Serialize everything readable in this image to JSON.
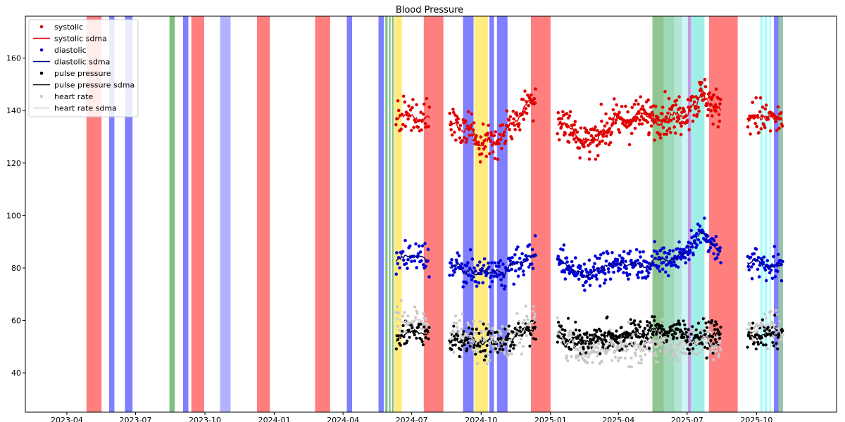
{
  "chart_data": {
    "type": "scatter",
    "title": "Blood Pressure",
    "xlabel": "",
    "ylabel": "",
    "x_range": [
      "2023-02-05",
      "2026-01-15"
    ],
    "ylim": [
      25,
      176
    ],
    "grid": false,
    "legend_position": "top-left",
    "x_ticks": [
      {
        "date": "2023-04-01",
        "label": "2023-04"
      },
      {
        "date": "2023-07-01",
        "label": "2023-07"
      },
      {
        "date": "2023-10-01",
        "label": "2023-10"
      },
      {
        "date": "2024-01-01",
        "label": "2024-01"
      },
      {
        "date": "2024-04-01",
        "label": "2024-04"
      },
      {
        "date": "2024-07-01",
        "label": "2024-07"
      },
      {
        "date": "2024-10-01",
        "label": "2024-10"
      },
      {
        "date": "2025-01-01",
        "label": "2025-01"
      },
      {
        "date": "2025-04-01",
        "label": "2025-04"
      },
      {
        "date": "2025-07-01",
        "label": "2025-07"
      },
      {
        "date": "2025-10-01",
        "label": "2025-10"
      }
    ],
    "y_ticks": [
      40,
      60,
      80,
      100,
      120,
      140,
      160
    ],
    "series": [
      {
        "name": "systolic",
        "kind": "points",
        "color": "#e00000",
        "key": "sys",
        "centers": [
          [
            600,
            138
          ],
          [
            650,
            134
          ],
          [
            675,
            130
          ],
          [
            705,
            128
          ],
          [
            740,
            140
          ],
          [
            760,
            146
          ],
          [
            830,
            128
          ],
          [
            880,
            136
          ],
          [
            925,
            138
          ],
          [
            960,
            138
          ],
          [
            980,
            142
          ],
          [
            1000,
            146
          ],
          [
            1020,
            140
          ],
          [
            1085,
            137
          ],
          [
            1110,
            136
          ],
          [
            1125,
            138
          ]
        ]
      },
      {
        "name": "systolic sdma",
        "kind": "line",
        "color": "#e00000",
        "key": "sys"
      },
      {
        "name": "diastolic",
        "kind": "points",
        "color": "#0000d8",
        "key": "dia",
        "centers": [
          [
            600,
            84
          ],
          [
            650,
            80
          ],
          [
            675,
            78
          ],
          [
            705,
            78
          ],
          [
            740,
            82
          ],
          [
            760,
            86
          ],
          [
            830,
            78
          ],
          [
            880,
            82
          ],
          [
            925,
            82
          ],
          [
            960,
            84
          ],
          [
            980,
            88
          ],
          [
            1000,
            94
          ],
          [
            1020,
            86
          ],
          [
            1085,
            82
          ],
          [
            1110,
            80
          ],
          [
            1125,
            80
          ]
        ]
      },
      {
        "name": "diastolic sdma",
        "kind": "line",
        "color": "#00008b",
        "key": "dia"
      },
      {
        "name": "pulse pressure",
        "kind": "points",
        "color": "#000000",
        "key": "pp",
        "centers": [
          [
            600,
            54
          ],
          [
            650,
            53
          ],
          [
            675,
            52
          ],
          [
            705,
            52
          ],
          [
            740,
            55
          ],
          [
            760,
            58
          ],
          [
            830,
            52
          ],
          [
            880,
            54
          ],
          [
            925,
            56
          ],
          [
            960,
            56
          ],
          [
            980,
            54
          ],
          [
            1000,
            54
          ],
          [
            1020,
            54
          ],
          [
            1085,
            54
          ],
          [
            1110,
            55
          ],
          [
            1125,
            57
          ]
        ]
      },
      {
        "name": "pulse pressure sdma",
        "kind": "line",
        "color": "#000000",
        "key": "pp"
      },
      {
        "name": "heart rate",
        "kind": "points",
        "color": "#c8c8c8",
        "key": "hr",
        "centers": [
          [
            600,
            60
          ],
          [
            650,
            55
          ],
          [
            675,
            53
          ],
          [
            705,
            52
          ],
          [
            740,
            55
          ],
          [
            760,
            60
          ],
          [
            830,
            48
          ],
          [
            880,
            50
          ],
          [
            925,
            52
          ],
          [
            960,
            50
          ],
          [
            980,
            52
          ],
          [
            1000,
            52
          ],
          [
            1020,
            50
          ],
          [
            1085,
            58
          ],
          [
            1110,
            56
          ],
          [
            1125,
            58
          ]
        ]
      },
      {
        "name": "heart rate sdma",
        "kind": "line",
        "color": "#d0d0d0",
        "key": "hr"
      }
    ],
    "bands": [
      {
        "start": "2023-04-27",
        "end": "2023-05-17",
        "color": "#ff0000",
        "opacity": 0.5
      },
      {
        "start": "2023-05-27",
        "end": "2023-06-03",
        "color": "#0000ff",
        "opacity": 0.5
      },
      {
        "start": "2023-06-17",
        "end": "2023-06-27",
        "color": "#0000ff",
        "opacity": 0.5
      },
      {
        "start": "2023-08-15",
        "end": "2023-08-22",
        "color": "#008000",
        "opacity": 0.5
      },
      {
        "start": "2023-09-02",
        "end": "2023-09-09",
        "color": "#0000ff",
        "opacity": 0.5
      },
      {
        "start": "2023-09-13",
        "end": "2023-09-30",
        "color": "#ff0000",
        "opacity": 0.5
      },
      {
        "start": "2023-10-21",
        "end": "2023-11-04",
        "color": "#6666ff",
        "opacity": 0.5
      },
      {
        "start": "2023-12-09",
        "end": "2023-12-26",
        "color": "#ff0000",
        "opacity": 0.5
      },
      {
        "start": "2024-02-24",
        "end": "2024-03-15",
        "color": "#ff0000",
        "opacity": 0.5
      },
      {
        "start": "2024-04-06",
        "end": "2024-04-13",
        "color": "#0000ff",
        "opacity": 0.5
      },
      {
        "start": "2024-05-18",
        "end": "2024-05-25",
        "color": "#0000ff",
        "opacity": 0.5
      },
      {
        "start": "2024-05-27",
        "end": "2024-05-30",
        "color": "#008000",
        "opacity": 0.5
      },
      {
        "start": "2024-06-01",
        "end": "2024-06-03",
        "color": "#008000",
        "opacity": 0.5
      },
      {
        "start": "2024-06-05",
        "end": "2024-06-07",
        "color": "#008000",
        "opacity": 0.5
      },
      {
        "start": "2024-06-08",
        "end": "2024-06-18",
        "color": "#ffd700",
        "opacity": 0.5
      },
      {
        "start": "2024-07-17",
        "end": "2024-08-12",
        "color": "#ff0000",
        "opacity": 0.5
      },
      {
        "start": "2024-09-07",
        "end": "2024-09-21",
        "color": "#0000ff",
        "opacity": 0.5
      },
      {
        "start": "2024-09-22",
        "end": "2024-10-10",
        "color": "#ffd700",
        "opacity": 0.5
      },
      {
        "start": "2024-10-12",
        "end": "2024-10-18",
        "color": "#0000ff",
        "opacity": 0.5
      },
      {
        "start": "2024-10-22",
        "end": "2024-11-05",
        "color": "#0000ff",
        "opacity": 0.5
      },
      {
        "start": "2024-12-06",
        "end": "2025-01-01",
        "color": "#ff0000",
        "opacity": 0.5
      },
      {
        "start": "2025-05-16",
        "end": "2025-05-31",
        "color": "#228b22",
        "opacity": 0.5
      },
      {
        "start": "2025-05-31",
        "end": "2025-06-14",
        "color": "#3cb371",
        "opacity": 0.5
      },
      {
        "start": "2025-06-14",
        "end": "2025-06-24",
        "color": "#66cdaa",
        "opacity": 0.5
      },
      {
        "start": "2025-06-24",
        "end": "2025-07-02",
        "color": "#afeeee",
        "opacity": 0.6
      },
      {
        "start": "2025-07-02",
        "end": "2025-07-06",
        "color": "#9932cc",
        "opacity": 0.5
      },
      {
        "start": "2025-07-06",
        "end": "2025-07-24",
        "color": "#40e0d0",
        "opacity": 0.5
      },
      {
        "start": "2025-07-30",
        "end": "2025-09-06",
        "color": "#ff0000",
        "opacity": 0.5
      },
      {
        "start": "2025-10-06",
        "end": "2025-10-09",
        "color": "#00ffff",
        "opacity": 0.4
      },
      {
        "start": "2025-10-12",
        "end": "2025-10-15",
        "color": "#00ffff",
        "opacity": 0.4
      },
      {
        "start": "2025-10-18",
        "end": "2025-10-20",
        "color": "#00ffff",
        "opacity": 0.4
      },
      {
        "start": "2025-10-24",
        "end": "2025-10-30",
        "color": "#0000ff",
        "opacity": 0.5
      },
      {
        "start": "2025-10-30",
        "end": "2025-11-05",
        "color": "#2e8b57",
        "opacity": 0.5
      }
    ],
    "data_segments": [
      {
        "start": "2024-06-10",
        "end": "2024-07-25",
        "n": 40
      },
      {
        "start": "2024-08-20",
        "end": "2024-12-13",
        "n": 130
      },
      {
        "start": "2025-01-10",
        "end": "2025-08-15",
        "n": 300
      },
      {
        "start": "2025-09-19",
        "end": "2025-11-05",
        "n": 50
      }
    ]
  }
}
